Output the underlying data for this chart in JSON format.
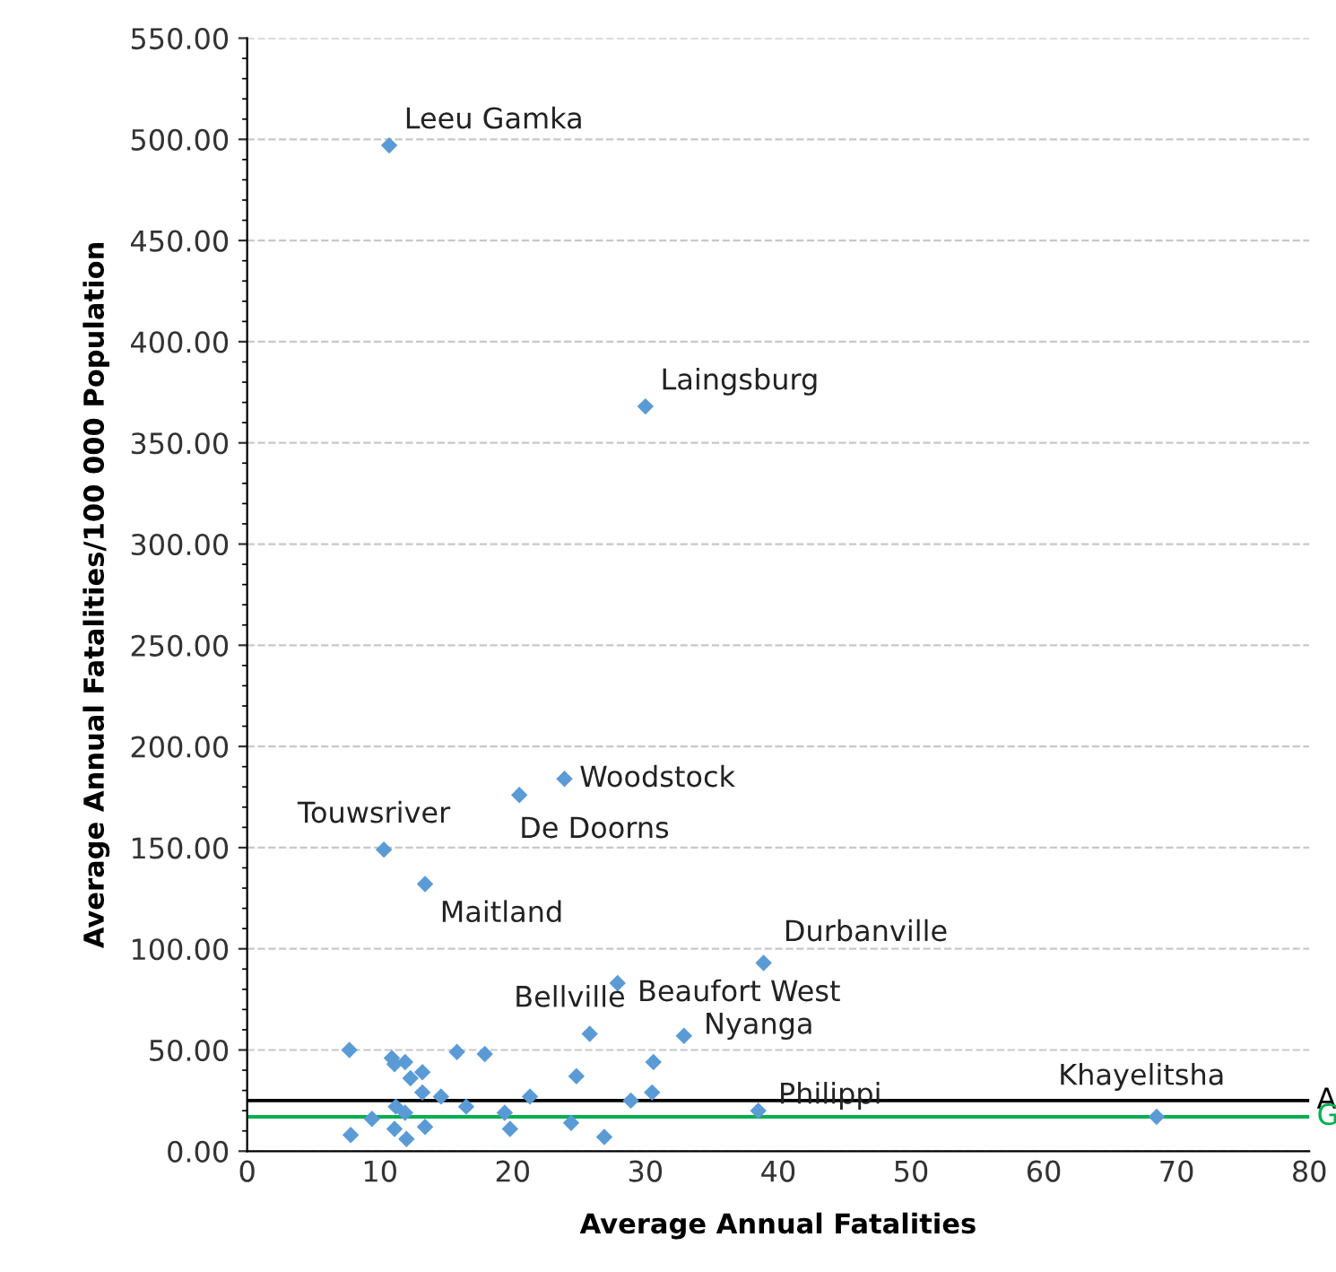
{
  "chart_data": {
    "type": "scatter",
    "xlabel": "Average Annual Fatalities",
    "ylabel": "Average Annual Fatalities/100 000 Population",
    "marker": "diamond",
    "grid": "y",
    "xlim": [
      0,
      80
    ],
    "xticks": [
      0,
      10,
      20,
      30,
      40,
      50,
      60,
      70,
      80
    ],
    "ylim": [
      0,
      550
    ],
    "yticks": [
      {
        "value": 0,
        "label": "0.00"
      },
      {
        "value": 50,
        "label": "50.00"
      },
      {
        "value": 100,
        "label": "100.00"
      },
      {
        "value": 150,
        "label": "150.00"
      },
      {
        "value": 200,
        "label": "200.00"
      },
      {
        "value": 250,
        "label": "250.00"
      },
      {
        "value": 300,
        "label": "300.00"
      },
      {
        "value": 350,
        "label": "350.00"
      },
      {
        "value": 400,
        "label": "400.00"
      },
      {
        "value": 450,
        "label": "450.00"
      },
      {
        "value": 500,
        "label": "500.00"
      },
      {
        "value": 550,
        "label": "550.00"
      }
    ],
    "series": [
      {
        "color": "#5b9bd5",
        "x": [
          10.7,
          30.0,
          23.9,
          20.5,
          10.3,
          13.4,
          38.9,
          27.9,
          25.8,
          32.9,
          38.5,
          68.5,
          7.7,
          10.9,
          11.1,
          11.9,
          12.3,
          13.2,
          15.8,
          17.9,
          24.8,
          30.6,
          30.5,
          13.2,
          14.6,
          21.3,
          28.9,
          11.2,
          11.9,
          16.5,
          9.4,
          19.4,
          24.4,
          7.8,
          11.1,
          12.0,
          13.4,
          19.8,
          26.9
        ],
        "values": [
          497,
          368,
          184,
          176,
          149,
          132,
          93,
          83,
          58,
          57,
          20,
          17,
          50,
          46,
          43,
          44,
          36,
          39,
          49,
          48,
          37,
          44,
          29,
          29,
          27,
          27,
          25,
          22,
          19,
          22,
          16,
          19,
          14,
          8,
          11,
          6,
          12,
          11,
          7
        ]
      }
    ],
    "ref_lines": [
      {
        "axis": "y",
        "value": 25,
        "label": "A",
        "color": "#000000"
      },
      {
        "axis": "y",
        "value": 17,
        "label": "G",
        "color": "#00b050"
      }
    ],
    "annotations": [
      {
        "text": "Leeu Gamka",
        "x": 10.7,
        "y": 497
      },
      {
        "text": "Laingsburg",
        "x": 30.0,
        "y": 368
      },
      {
        "text": "Woodstock",
        "x": 23.9,
        "y": 184
      },
      {
        "text": "De Doorns",
        "x": 20.5,
        "y": 176
      },
      {
        "text": "Touwsriver",
        "x": 10.3,
        "y": 149
      },
      {
        "text": "Maitland",
        "x": 13.4,
        "y": 132
      },
      {
        "text": "Durbanville",
        "x": 38.9,
        "y": 93
      },
      {
        "text": "Beaufort West",
        "x": 27.9,
        "y": 83
      },
      {
        "text": "Bellville",
        "x": 25.8,
        "y": 58
      },
      {
        "text": "Nyanga",
        "x": 32.9,
        "y": 57
      },
      {
        "text": "Philippi",
        "x": 38.5,
        "y": 20
      },
      {
        "text": "Khayelitsha",
        "x": 68.5,
        "y": 17
      }
    ]
  }
}
